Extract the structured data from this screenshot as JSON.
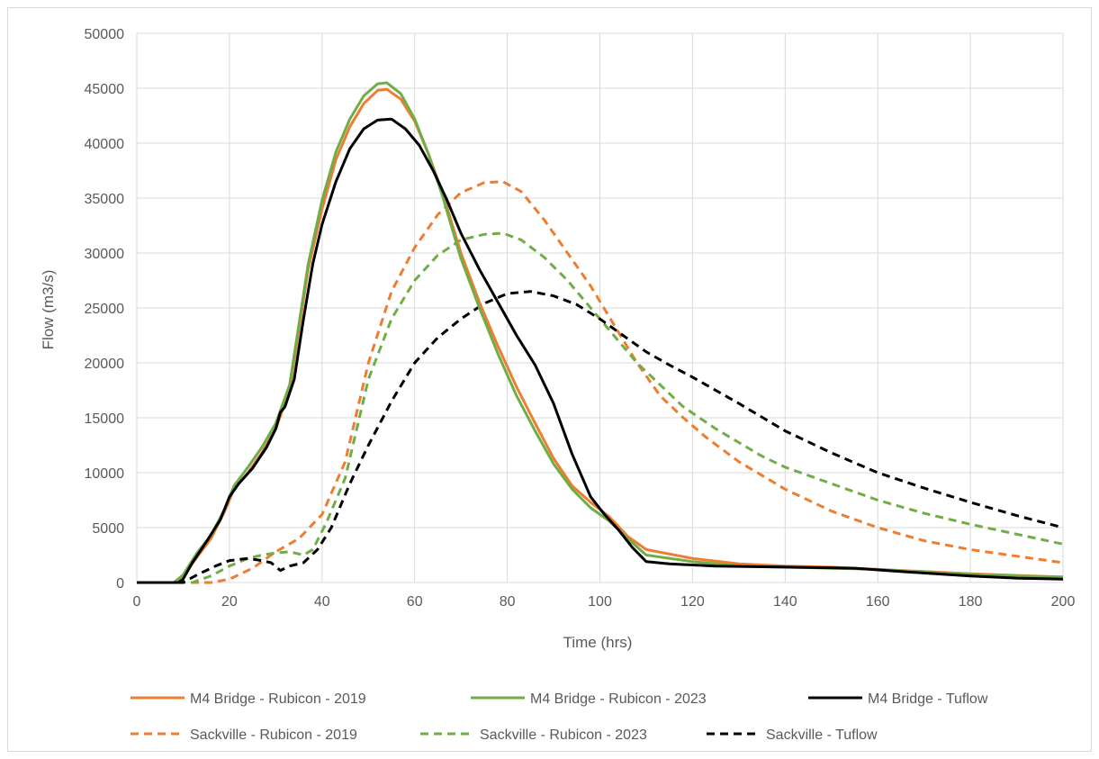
{
  "chart_data": {
    "type": "line",
    "xlabel": "Time (hrs)",
    "ylabel": "Flow (m3/s)",
    "xlim": [
      0,
      200
    ],
    "ylim": [
      0,
      50000
    ],
    "x_ticks": [
      0,
      20,
      40,
      60,
      80,
      100,
      120,
      140,
      160,
      180,
      200
    ],
    "y_ticks": [
      0,
      5000,
      10000,
      15000,
      20000,
      25000,
      30000,
      35000,
      40000,
      45000,
      50000
    ],
    "grid": true,
    "legend_position": "bottom",
    "series": [
      {
        "name": "M4 Bridge - Rubicon - 2019",
        "color": "#ed7d31",
        "dash": "solid",
        "points": [
          [
            0,
            0
          ],
          [
            8,
            0
          ],
          [
            10,
            600
          ],
          [
            13,
            2300
          ],
          [
            16,
            4000
          ],
          [
            19,
            6500
          ],
          [
            21,
            8500
          ],
          [
            24,
            10000
          ],
          [
            27,
            11800
          ],
          [
            30,
            14000
          ],
          [
            33,
            17500
          ],
          [
            35,
            23000
          ],
          [
            37,
            28500
          ],
          [
            40,
            34000
          ],
          [
            43,
            38500
          ],
          [
            46,
            41500
          ],
          [
            49,
            43600
          ],
          [
            52,
            44800
          ],
          [
            54,
            44900
          ],
          [
            57,
            44000
          ],
          [
            60,
            42000
          ],
          [
            63,
            39000
          ],
          [
            66,
            35500
          ],
          [
            70,
            30000
          ],
          [
            74,
            25500
          ],
          [
            78,
            21500
          ],
          [
            82,
            17800
          ],
          [
            86,
            14500
          ],
          [
            90,
            11300
          ],
          [
            94,
            8800
          ],
          [
            98,
            7300
          ],
          [
            102,
            6000
          ],
          [
            106,
            4200
          ],
          [
            110,
            3000
          ],
          [
            120,
            2200
          ],
          [
            130,
            1700
          ],
          [
            140,
            1500
          ],
          [
            150,
            1400
          ],
          [
            160,
            1200
          ],
          [
            170,
            1000
          ],
          [
            180,
            800
          ],
          [
            190,
            650
          ],
          [
            200,
            500
          ]
        ]
      },
      {
        "name": "M4 Bridge - Rubicon - 2023",
        "color": "#70ad47",
        "dash": "solid",
        "points": [
          [
            0,
            0
          ],
          [
            8,
            0
          ],
          [
            10,
            700
          ],
          [
            13,
            2700
          ],
          [
            16,
            4300
          ],
          [
            19,
            6700
          ],
          [
            21,
            8800
          ],
          [
            24,
            10500
          ],
          [
            27,
            12300
          ],
          [
            30,
            14500
          ],
          [
            33,
            18000
          ],
          [
            35,
            23500
          ],
          [
            37,
            29000
          ],
          [
            40,
            34800
          ],
          [
            43,
            39200
          ],
          [
            46,
            42200
          ],
          [
            49,
            44300
          ],
          [
            52,
            45400
          ],
          [
            54,
            45500
          ],
          [
            57,
            44500
          ],
          [
            60,
            42200
          ],
          [
            63,
            39000
          ],
          [
            66,
            35200
          ],
          [
            70,
            29500
          ],
          [
            74,
            25000
          ],
          [
            78,
            20800
          ],
          [
            82,
            17000
          ],
          [
            86,
            13800
          ],
          [
            90,
            10800
          ],
          [
            94,
            8500
          ],
          [
            98,
            6800
          ],
          [
            102,
            5600
          ],
          [
            106,
            4000
          ],
          [
            110,
            2500
          ],
          [
            120,
            1900
          ],
          [
            130,
            1500
          ],
          [
            140,
            1400
          ],
          [
            150,
            1300
          ],
          [
            160,
            1200
          ],
          [
            170,
            950
          ],
          [
            180,
            750
          ],
          [
            190,
            600
          ],
          [
            200,
            500
          ]
        ]
      },
      {
        "name": "M4 Bridge - Tuflow",
        "color": "#000000",
        "dash": "solid",
        "points": [
          [
            0,
            0
          ],
          [
            9,
            0
          ],
          [
            10,
            300
          ],
          [
            12,
            1800
          ],
          [
            15,
            3700
          ],
          [
            18,
            5700
          ],
          [
            20,
            7800
          ],
          [
            22,
            9000
          ],
          [
            25,
            10400
          ],
          [
            28,
            12300
          ],
          [
            30,
            14000
          ],
          [
            31,
            15500
          ],
          [
            32,
            16000
          ],
          [
            34,
            18500
          ],
          [
            36,
            24000
          ],
          [
            38,
            29000
          ],
          [
            40,
            32600
          ],
          [
            43,
            36500
          ],
          [
            46,
            39500
          ],
          [
            49,
            41300
          ],
          [
            52,
            42100
          ],
          [
            55,
            42200
          ],
          [
            58,
            41300
          ],
          [
            61,
            39800
          ],
          [
            64,
            37500
          ],
          [
            67,
            34800
          ],
          [
            70,
            31800
          ],
          [
            74,
            28500
          ],
          [
            78,
            25500
          ],
          [
            82,
            22500
          ],
          [
            86,
            19800
          ],
          [
            90,
            16300
          ],
          [
            94,
            11700
          ],
          [
            98,
            7800
          ],
          [
            101,
            6200
          ],
          [
            104,
            4800
          ],
          [
            107,
            3200
          ],
          [
            110,
            1900
          ],
          [
            115,
            1700
          ],
          [
            125,
            1500
          ],
          [
            140,
            1400
          ],
          [
            155,
            1300
          ],
          [
            165,
            1000
          ],
          [
            180,
            600
          ],
          [
            190,
            400
          ],
          [
            200,
            300
          ]
        ]
      },
      {
        "name": "Sackville - Rubicon - 2019",
        "color": "#ed7d31",
        "dash": "dashed",
        "points": [
          [
            0,
            0
          ],
          [
            16,
            0
          ],
          [
            20,
            300
          ],
          [
            25,
            1300
          ],
          [
            30,
            2800
          ],
          [
            35,
            4000
          ],
          [
            40,
            6200
          ],
          [
            45,
            11000
          ],
          [
            50,
            20000
          ],
          [
            55,
            26500
          ],
          [
            60,
            30500
          ],
          [
            65,
            33500
          ],
          [
            70,
            35500
          ],
          [
            75,
            36400
          ],
          [
            79,
            36500
          ],
          [
            83,
            35600
          ],
          [
            88,
            33000
          ],
          [
            93,
            30000
          ],
          [
            98,
            27000
          ],
          [
            103,
            23500
          ],
          [
            108,
            20000
          ],
          [
            113,
            17000
          ],
          [
            118,
            15000
          ],
          [
            123,
            13200
          ],
          [
            130,
            11000
          ],
          [
            140,
            8500
          ],
          [
            150,
            6500
          ],
          [
            160,
            5000
          ],
          [
            170,
            3800
          ],
          [
            180,
            3000
          ],
          [
            190,
            2400
          ],
          [
            200,
            1800
          ]
        ]
      },
      {
        "name": "Sackville - Rubicon - 2023",
        "color": "#70ad47",
        "dash": "dashed",
        "points": [
          [
            0,
            0
          ],
          [
            12,
            0
          ],
          [
            16,
            600
          ],
          [
            20,
            1500
          ],
          [
            24,
            2200
          ],
          [
            27,
            2500
          ],
          [
            30,
            2700
          ],
          [
            33,
            2800
          ],
          [
            36,
            2500
          ],
          [
            38,
            3000
          ],
          [
            41,
            5500
          ],
          [
            45,
            9500
          ],
          [
            50,
            18500
          ],
          [
            55,
            24000
          ],
          [
            60,
            27500
          ],
          [
            65,
            29800
          ],
          [
            70,
            31200
          ],
          [
            75,
            31700
          ],
          [
            79,
            31800
          ],
          [
            83,
            31200
          ],
          [
            88,
            29600
          ],
          [
            93,
            27500
          ],
          [
            98,
            25000
          ],
          [
            103,
            22500
          ],
          [
            108,
            20000
          ],
          [
            113,
            18000
          ],
          [
            118,
            16000
          ],
          [
            125,
            14000
          ],
          [
            135,
            11500
          ],
          [
            140,
            10500
          ],
          [
            150,
            9000
          ],
          [
            160,
            7500
          ],
          [
            170,
            6300
          ],
          [
            180,
            5300
          ],
          [
            190,
            4400
          ],
          [
            200,
            3500
          ]
        ]
      },
      {
        "name": "Sackville - Tuflow",
        "color": "#000000",
        "dash": "dashed",
        "points": [
          [
            0,
            0
          ],
          [
            10,
            0
          ],
          [
            13,
            700
          ],
          [
            17,
            1500
          ],
          [
            20,
            2000
          ],
          [
            24,
            2200
          ],
          [
            27,
            2000
          ],
          [
            29,
            1800
          ],
          [
            31,
            1100
          ],
          [
            33,
            1500
          ],
          [
            36,
            1800
          ],
          [
            39,
            3000
          ],
          [
            42,
            5000
          ],
          [
            46,
            9000
          ],
          [
            50,
            12500
          ],
          [
            55,
            16500
          ],
          [
            60,
            20000
          ],
          [
            65,
            22300
          ],
          [
            70,
            24000
          ],
          [
            75,
            25400
          ],
          [
            80,
            26300
          ],
          [
            85,
            26500
          ],
          [
            90,
            26100
          ],
          [
            95,
            25300
          ],
          [
            100,
            24000
          ],
          [
            105,
            22500
          ],
          [
            110,
            21000
          ],
          [
            115,
            19800
          ],
          [
            120,
            18700
          ],
          [
            130,
            16300
          ],
          [
            140,
            13800
          ],
          [
            150,
            11800
          ],
          [
            160,
            10000
          ],
          [
            170,
            8600
          ],
          [
            180,
            7300
          ],
          [
            190,
            6100
          ],
          [
            200,
            5000
          ]
        ]
      }
    ]
  }
}
